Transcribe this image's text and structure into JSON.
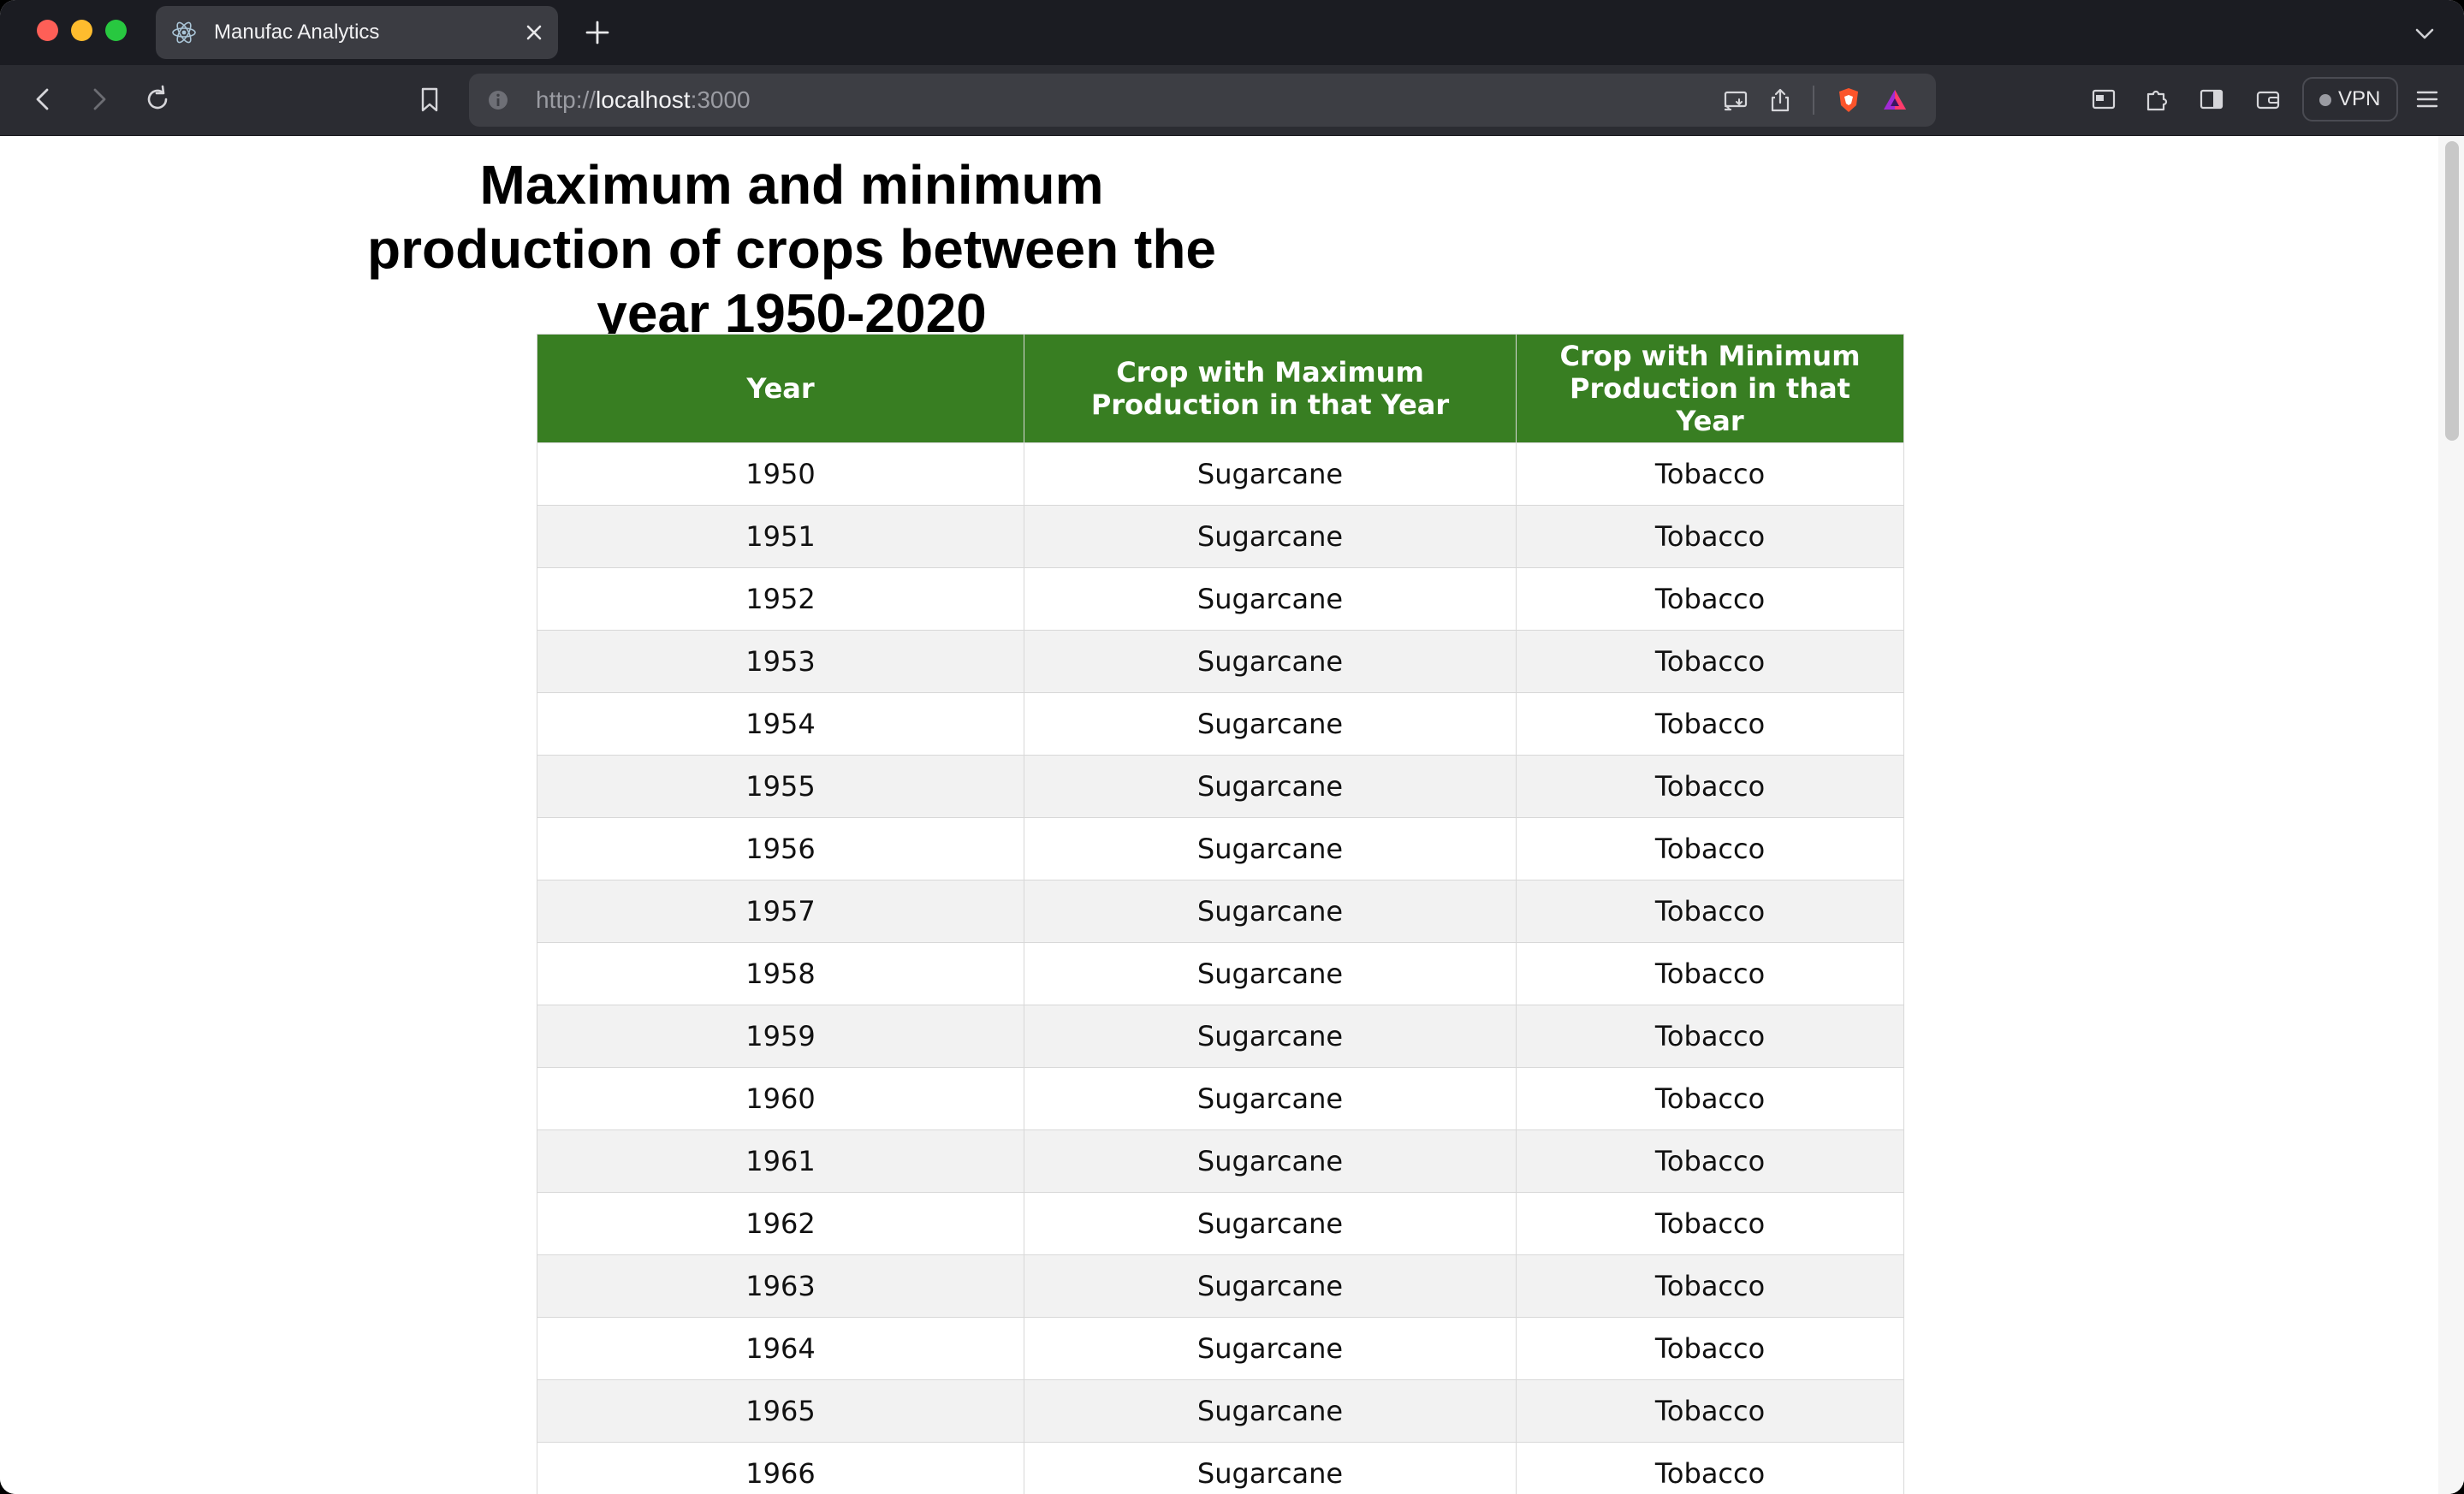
{
  "browser": {
    "tab_title": "Manufac Analytics",
    "tab_favicon": "react-icon",
    "url_scheme": "http://",
    "url_host": "localhost",
    "url_port": ":3000",
    "vpn_label": "VPN"
  },
  "page": {
    "title": "Maximum and minimum production of crops between the year 1950-2020",
    "table": {
      "headers": [
        "Year",
        "Crop with Maximum Production in that Year",
        "Crop with Minimum Production in that Year"
      ],
      "header_color": "#387e22",
      "rows": [
        [
          "1950",
          "Sugarcane",
          "Tobacco"
        ],
        [
          "1951",
          "Sugarcane",
          "Tobacco"
        ],
        [
          "1952",
          "Sugarcane",
          "Tobacco"
        ],
        [
          "1953",
          "Sugarcane",
          "Tobacco"
        ],
        [
          "1954",
          "Sugarcane",
          "Tobacco"
        ],
        [
          "1955",
          "Sugarcane",
          "Tobacco"
        ],
        [
          "1956",
          "Sugarcane",
          "Tobacco"
        ],
        [
          "1957",
          "Sugarcane",
          "Tobacco"
        ],
        [
          "1958",
          "Sugarcane",
          "Tobacco"
        ],
        [
          "1959",
          "Sugarcane",
          "Tobacco"
        ],
        [
          "1960",
          "Sugarcane",
          "Tobacco"
        ],
        [
          "1961",
          "Sugarcane",
          "Tobacco"
        ],
        [
          "1962",
          "Sugarcane",
          "Tobacco"
        ],
        [
          "1963",
          "Sugarcane",
          "Tobacco"
        ],
        [
          "1964",
          "Sugarcane",
          "Tobacco"
        ],
        [
          "1965",
          "Sugarcane",
          "Tobacco"
        ],
        [
          "1966",
          "Sugarcane",
          "Tobacco"
        ]
      ]
    }
  }
}
